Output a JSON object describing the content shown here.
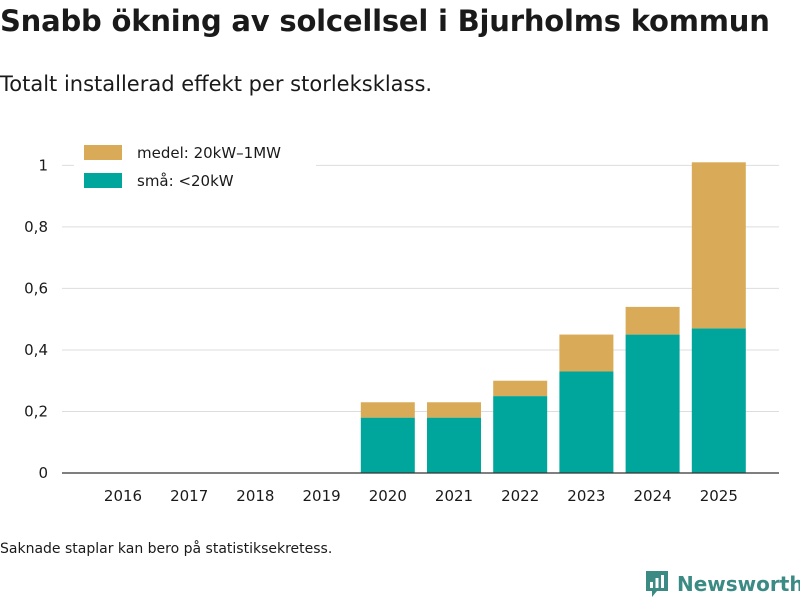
{
  "header": {
    "title": "Snabb ökning av solcellsel i Bjurholms kommun",
    "subtitle": "Totalt installerad effekt per storleksklass."
  },
  "footer": {
    "note": "Saknade staplar kan bero på statistiksekretess.",
    "logo_text": "Newsworthy"
  },
  "colors": {
    "small": "#00a69c",
    "medium": "#d9ab58",
    "grid": "#dddddd",
    "axis": "#333333",
    "logo": "#3c8a84"
  },
  "chart_data": {
    "type": "bar",
    "stacked": true,
    "title": "Snabb ökning av solcellsel i Bjurholms kommun",
    "subtitle": "Totalt installerad effekt per storleksklass.",
    "xlabel": "",
    "ylabel": "",
    "categories": [
      "2016",
      "2017",
      "2018",
      "2019",
      "2020",
      "2021",
      "2022",
      "2023",
      "2024",
      "2025"
    ],
    "series": [
      {
        "name": "små: <20kW",
        "values": [
          0,
          0,
          0,
          0,
          0.18,
          0.18,
          0.25,
          0.33,
          0.45,
          0.47
        ]
      },
      {
        "name": "medel: 20kW–1MW",
        "values": [
          0,
          0,
          0,
          0,
          0.05,
          0.05,
          0.05,
          0.12,
          0.09,
          0.54
        ]
      }
    ],
    "ylim": [
      0,
      1.05
    ],
    "yticks": [
      0,
      0.2,
      0.4,
      0.6,
      0.8,
      1
    ],
    "ytick_labels": [
      "0",
      "0,2",
      "0,4",
      "0,6",
      "0,8",
      "1"
    ],
    "grid": true,
    "legend_position": "top-left"
  }
}
